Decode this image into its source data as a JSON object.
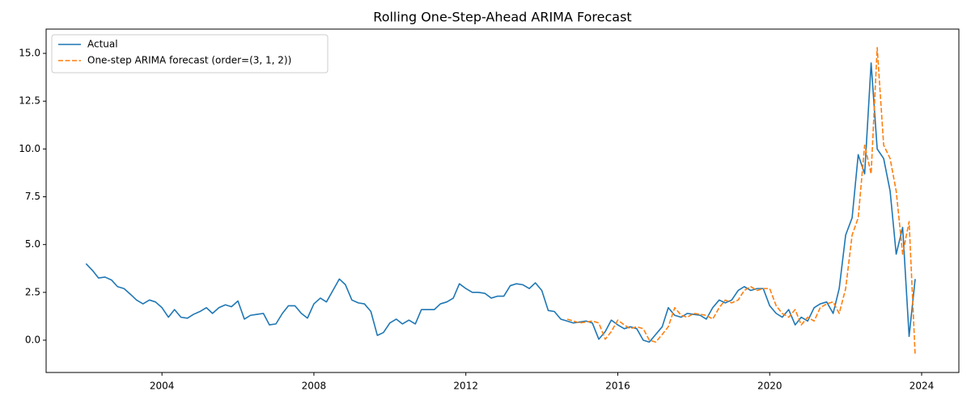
{
  "chart_data": {
    "type": "line",
    "title": "Rolling One-Step-Ahead ARIMA Forecast",
    "x": [
      2002.0,
      2002.17,
      2002.33,
      2002.5,
      2002.67,
      2002.83,
      2003.0,
      2003.17,
      2003.33,
      2003.5,
      2003.67,
      2003.83,
      2004.0,
      2004.17,
      2004.33,
      2004.5,
      2004.67,
      2004.83,
      2005.0,
      2005.17,
      2005.33,
      2005.5,
      2005.67,
      2005.83,
      2006.0,
      2006.17,
      2006.33,
      2006.5,
      2006.67,
      2006.83,
      2007.0,
      2007.17,
      2007.33,
      2007.5,
      2007.67,
      2007.83,
      2008.0,
      2008.17,
      2008.33,
      2008.5,
      2008.67,
      2008.83,
      2009.0,
      2009.17,
      2009.33,
      2009.5,
      2009.67,
      2009.83,
      2010.0,
      2010.17,
      2010.33,
      2010.5,
      2010.67,
      2010.83,
      2011.0,
      2011.17,
      2011.33,
      2011.5,
      2011.67,
      2011.83,
      2012.0,
      2012.17,
      2012.33,
      2012.5,
      2012.67,
      2012.83,
      2013.0,
      2013.17,
      2013.33,
      2013.5,
      2013.67,
      2013.83,
      2014.0,
      2014.17,
      2014.33,
      2014.5,
      2014.67,
      2014.83,
      2015.0,
      2015.17,
      2015.33,
      2015.5,
      2015.67,
      2015.83,
      2016.0,
      2016.17,
      2016.33,
      2016.5,
      2016.67,
      2016.83,
      2017.0,
      2017.17,
      2017.33,
      2017.5,
      2017.67,
      2017.83,
      2018.0,
      2018.17,
      2018.33,
      2018.5,
      2018.67,
      2018.83,
      2019.0,
      2019.17,
      2019.33,
      2019.5,
      2019.67,
      2019.83,
      2020.0,
      2020.17,
      2020.33,
      2020.5,
      2020.67,
      2020.83,
      2021.0,
      2021.17,
      2021.33,
      2021.5,
      2021.67,
      2021.83,
      2022.0,
      2022.17,
      2022.33,
      2022.5,
      2022.67,
      2022.83,
      2023.0,
      2023.17,
      2023.33,
      2023.5,
      2023.67,
      2023.83
    ],
    "series": [
      {
        "name": "Actual",
        "color": "#1f77b4",
        "dash": false,
        "values": [
          4.0,
          3.65,
          3.25,
          3.3,
          3.15,
          2.8,
          2.7,
          2.4,
          2.1,
          1.9,
          2.1,
          2.0,
          1.7,
          1.2,
          1.6,
          1.2,
          1.15,
          1.35,
          1.5,
          1.7,
          1.4,
          1.7,
          1.85,
          1.75,
          2.05,
          1.1,
          1.3,
          1.35,
          1.4,
          0.8,
          0.85,
          1.4,
          1.8,
          1.8,
          1.4,
          1.15,
          1.9,
          2.2,
          2.0,
          2.6,
          3.2,
          2.9,
          2.1,
          1.95,
          1.9,
          1.5,
          0.25,
          0.4,
          0.9,
          1.1,
          0.85,
          1.05,
          0.85,
          1.6,
          1.6,
          1.6,
          1.9,
          2.0,
          2.2,
          2.95,
          2.7,
          2.5,
          2.5,
          2.45,
          2.2,
          2.3,
          2.3,
          2.85,
          2.95,
          2.9,
          2.7,
          3.0,
          2.6,
          1.55,
          1.5,
          1.1,
          1.0,
          0.9,
          0.95,
          1.0,
          0.9,
          0.05,
          0.45,
          1.05,
          0.8,
          0.6,
          0.7,
          0.6,
          0.0,
          -0.1,
          0.3,
          0.7,
          1.7,
          1.3,
          1.2,
          1.4,
          1.35,
          1.3,
          1.1,
          1.7,
          2.1,
          1.95,
          2.1,
          2.6,
          2.8,
          2.6,
          2.7,
          2.7,
          1.8,
          1.4,
          1.2,
          1.6,
          0.8,
          1.2,
          1.0,
          1.7,
          1.9,
          2.0,
          1.4,
          2.7,
          5.5,
          6.4,
          9.7,
          8.7,
          14.5,
          10.0,
          9.5,
          7.8,
          4.5,
          5.9,
          0.2,
          3.2
        ]
      },
      {
        "name": "One-step ARIMA forecast (order=(3, 1, 2))",
        "color": "#ff7f0e",
        "dash": true,
        "values": [
          null,
          null,
          null,
          null,
          null,
          null,
          null,
          null,
          null,
          null,
          null,
          null,
          null,
          null,
          null,
          null,
          null,
          null,
          null,
          null,
          null,
          null,
          null,
          null,
          null,
          null,
          null,
          null,
          null,
          null,
          null,
          null,
          null,
          null,
          null,
          null,
          null,
          null,
          null,
          null,
          null,
          null,
          null,
          null,
          null,
          null,
          null,
          null,
          null,
          null,
          null,
          null,
          null,
          null,
          null,
          null,
          null,
          null,
          null,
          null,
          null,
          null,
          null,
          null,
          null,
          null,
          null,
          null,
          null,
          null,
          null,
          null,
          null,
          null,
          null,
          null,
          1.1,
          1.0,
          0.9,
          0.95,
          1.0,
          0.9,
          0.05,
          0.45,
          1.05,
          0.8,
          0.6,
          0.7,
          0.6,
          0.0,
          -0.1,
          0.3,
          0.7,
          1.7,
          1.3,
          1.2,
          1.4,
          1.35,
          1.3,
          1.1,
          1.7,
          2.1,
          1.95,
          2.1,
          2.6,
          2.8,
          2.6,
          2.7,
          2.7,
          1.8,
          1.4,
          1.2,
          1.6,
          0.8,
          1.2,
          1.0,
          1.7,
          1.9,
          2.0,
          1.4,
          2.7,
          5.5,
          6.4,
          10.2,
          8.7,
          15.3,
          10.2,
          9.5,
          7.8,
          4.5,
          6.2,
          -0.8
        ]
      }
    ],
    "xlim": [
      2000.95,
      2024.98
    ],
    "xticks": [
      2004,
      2008,
      2012,
      2016,
      2020,
      2024
    ],
    "ylim": [
      -1.69,
      16.27
    ],
    "yticks": [
      {
        "value": 0,
        "label": "0.0"
      },
      {
        "value": 2.5,
        "label": "2.5"
      },
      {
        "value": 5,
        "label": "5.0"
      },
      {
        "value": 7.5,
        "label": "7.5"
      },
      {
        "value": 10,
        "label": "10.0"
      },
      {
        "value": 12.5,
        "label": "12.5"
      },
      {
        "value": 15,
        "label": "15.0"
      }
    ],
    "legend": "upper left",
    "grid": false
  }
}
